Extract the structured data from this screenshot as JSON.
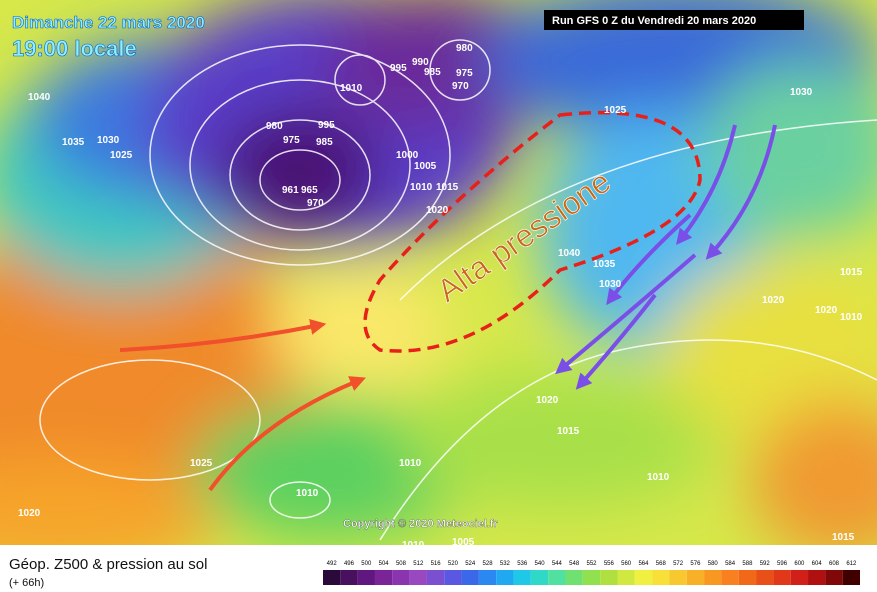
{
  "header": {
    "date": "Dimanche 22 mars 2020",
    "time": "19:00 locale",
    "run": "Run GFS 0 Z du Vendredi 20 mars 2020"
  },
  "annotation": "Alta pressione",
  "copyright": "Copyright © 2020 Meteociel.fr",
  "isobar_labels": [
    1040,
    1035,
    1030,
    1025,
    1010,
    995,
    990,
    985,
    980,
    975,
    970,
    980,
    995,
    975,
    985,
    965,
    961,
    970,
    1000,
    1005,
    1010,
    1015,
    1020,
    1025,
    1030,
    1040,
    1035,
    1030,
    1020,
    1020,
    1015,
    1010,
    1020,
    1015,
    1010,
    1025,
    1010,
    1020,
    1010,
    1015,
    1010,
    1005
  ],
  "footer": {
    "title": "Géop. Z500 & pression au sol",
    "forecast": "(+ 66h)"
  },
  "scale": {
    "labels": [
      492,
      496,
      500,
      504,
      508,
      512,
      516,
      520,
      524,
      528,
      532,
      536,
      540,
      544,
      548,
      552,
      556,
      560,
      564,
      568,
      572,
      576,
      580,
      584,
      588,
      592,
      596,
      600,
      604,
      608,
      612
    ]
  }
}
